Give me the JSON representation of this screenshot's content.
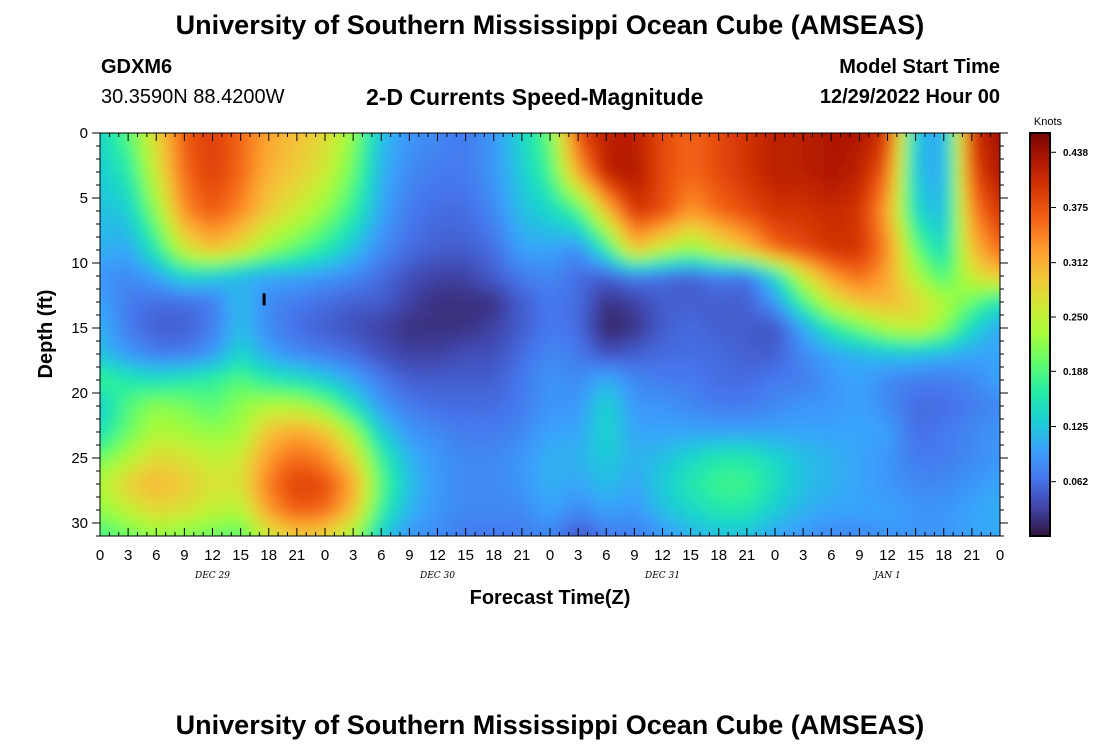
{
  "header": {
    "title": "University of Southern Mississippi Ocean Cube (AMSEAS)",
    "station": "GDXM6",
    "location": "30.3590N  88.4200W",
    "product": "2-D Currents Speed-Magnitude",
    "start_label": "Model Start Time",
    "start_value": "12/29/2022 Hour 00"
  },
  "footer": {
    "title": "University of Southern Mississippi Ocean Cube (AMSEAS)"
  },
  "chart_data": {
    "type": "heatmap",
    "xlabel": "Forecast Time(Z)",
    "ylabel": "Depth (ft)",
    "colorbar_label": "Knots",
    "x_tick_labels": [
      "0",
      "3",
      "6",
      "9",
      "12",
      "15",
      "18",
      "21",
      "0",
      "3",
      "6",
      "9",
      "12",
      "15",
      "18",
      "21",
      "0",
      "3",
      "6",
      "9",
      "12",
      "15",
      "18",
      "21",
      "0",
      "3",
      "6",
      "9",
      "12",
      "15",
      "18",
      "21",
      "0"
    ],
    "date_labels": [
      "DEC 29",
      "DEC 30",
      "DEC 31",
      "JAN 1"
    ],
    "x_range_hours": [
      0,
      96
    ],
    "y_ticks": [
      0,
      5,
      10,
      15,
      20,
      25,
      30
    ],
    "ylim": [
      0,
      31
    ],
    "y_inverted": true,
    "colorbar_ticks": [
      0.438,
      0.375,
      0.312,
      0.25,
      0.188,
      0.125,
      0.062
    ],
    "colorbar_range": [
      0.0,
      0.46
    ],
    "colormap": [
      "#30123b",
      "#4145ab",
      "#4675ed",
      "#39a2fc",
      "#1bcfd4",
      "#24eca6",
      "#61fc6c",
      "#a4fc3b",
      "#d1e834",
      "#f3c63a",
      "#fe9b2d",
      "#f36315",
      "#d93806",
      "#b11901",
      "#7a0403"
    ],
    "depths_ft": [
      0,
      3,
      6,
      9,
      11,
      13,
      15,
      17,
      19,
      21,
      23,
      25,
      27,
      29,
      31
    ],
    "times_h": [
      0,
      3,
      6,
      9,
      12,
      15,
      18,
      21,
      24,
      27,
      30,
      33,
      36,
      39,
      42,
      45,
      48,
      51,
      54,
      57,
      60,
      63,
      66,
      69,
      72,
      75,
      78,
      81,
      84,
      87,
      90,
      93,
      96
    ],
    "speed_knots": [
      [
        0.14,
        0.19,
        0.28,
        0.37,
        0.39,
        0.36,
        0.32,
        0.3,
        0.28,
        0.22,
        0.12,
        0.09,
        0.08,
        0.07,
        0.09,
        0.14,
        0.2,
        0.38,
        0.42,
        0.42,
        0.38,
        0.36,
        0.38,
        0.4,
        0.42,
        0.42,
        0.43,
        0.43,
        0.4,
        0.12,
        0.1,
        0.4,
        0.44
      ],
      [
        0.13,
        0.16,
        0.26,
        0.36,
        0.39,
        0.36,
        0.31,
        0.29,
        0.26,
        0.2,
        0.11,
        0.08,
        0.07,
        0.07,
        0.09,
        0.13,
        0.18,
        0.32,
        0.42,
        0.43,
        0.38,
        0.36,
        0.38,
        0.4,
        0.42,
        0.42,
        0.43,
        0.42,
        0.36,
        0.12,
        0.1,
        0.38,
        0.43
      ],
      [
        0.12,
        0.13,
        0.22,
        0.34,
        0.37,
        0.34,
        0.29,
        0.26,
        0.22,
        0.17,
        0.1,
        0.07,
        0.06,
        0.06,
        0.08,
        0.12,
        0.14,
        0.18,
        0.3,
        0.4,
        0.38,
        0.33,
        0.36,
        0.38,
        0.4,
        0.4,
        0.41,
        0.4,
        0.32,
        0.14,
        0.11,
        0.34,
        0.4
      ],
      [
        0.11,
        0.1,
        0.16,
        0.26,
        0.3,
        0.27,
        0.22,
        0.19,
        0.16,
        0.12,
        0.08,
        0.06,
        0.05,
        0.05,
        0.06,
        0.1,
        0.1,
        0.08,
        0.16,
        0.3,
        0.25,
        0.22,
        0.26,
        0.3,
        0.36,
        0.38,
        0.4,
        0.4,
        0.34,
        0.2,
        0.14,
        0.3,
        0.36
      ],
      [
        0.09,
        0.08,
        0.1,
        0.14,
        0.13,
        0.11,
        0.1,
        0.1,
        0.09,
        0.08,
        0.06,
        0.04,
        0.03,
        0.03,
        0.05,
        0.07,
        0.08,
        0.06,
        0.05,
        0.07,
        0.06,
        0.05,
        0.07,
        0.06,
        0.14,
        0.26,
        0.33,
        0.36,
        0.32,
        0.24,
        0.18,
        0.26,
        0.3
      ],
      [
        0.1,
        0.07,
        0.06,
        0.06,
        0.07,
        0.12,
        0.08,
        0.07,
        0.06,
        0.05,
        0.05,
        0.03,
        0.02,
        0.02,
        0.02,
        0.05,
        0.07,
        0.06,
        0.02,
        0.03,
        0.05,
        0.05,
        0.05,
        0.05,
        0.09,
        0.18,
        0.26,
        0.3,
        0.31,
        0.28,
        0.24,
        0.2,
        0.15
      ],
      [
        0.11,
        0.07,
        0.05,
        0.05,
        0.07,
        0.12,
        0.08,
        0.06,
        0.05,
        0.04,
        0.03,
        0.02,
        0.02,
        0.02,
        0.03,
        0.05,
        0.07,
        0.06,
        0.01,
        0.02,
        0.05,
        0.06,
        0.05,
        0.05,
        0.04,
        0.1,
        0.16,
        0.2,
        0.24,
        0.26,
        0.22,
        0.14,
        0.1
      ],
      [
        0.12,
        0.09,
        0.07,
        0.07,
        0.09,
        0.14,
        0.1,
        0.08,
        0.07,
        0.06,
        0.04,
        0.03,
        0.03,
        0.04,
        0.04,
        0.06,
        0.08,
        0.07,
        0.04,
        0.05,
        0.06,
        0.06,
        0.06,
        0.05,
        0.05,
        0.08,
        0.1,
        0.11,
        0.12,
        0.12,
        0.11,
        0.1,
        0.1
      ],
      [
        0.18,
        0.16,
        0.15,
        0.16,
        0.17,
        0.19,
        0.16,
        0.15,
        0.13,
        0.1,
        0.07,
        0.05,
        0.05,
        0.05,
        0.05,
        0.07,
        0.09,
        0.08,
        0.11,
        0.08,
        0.07,
        0.07,
        0.06,
        0.06,
        0.07,
        0.07,
        0.09,
        0.1,
        0.08,
        0.07,
        0.07,
        0.08,
        0.1
      ],
      [
        0.13,
        0.19,
        0.22,
        0.21,
        0.19,
        0.22,
        0.24,
        0.24,
        0.21,
        0.15,
        0.09,
        0.07,
        0.06,
        0.06,
        0.06,
        0.07,
        0.09,
        0.09,
        0.14,
        0.09,
        0.09,
        0.08,
        0.07,
        0.07,
        0.08,
        0.09,
        0.09,
        0.1,
        0.08,
        0.06,
        0.06,
        0.07,
        0.08
      ],
      [
        0.15,
        0.2,
        0.24,
        0.23,
        0.22,
        0.23,
        0.3,
        0.32,
        0.3,
        0.23,
        0.13,
        0.09,
        0.08,
        0.07,
        0.07,
        0.08,
        0.1,
        0.1,
        0.14,
        0.1,
        0.1,
        0.1,
        0.1,
        0.1,
        0.1,
        0.1,
        0.1,
        0.1,
        0.1,
        0.06,
        0.07,
        0.08,
        0.09
      ],
      [
        0.2,
        0.24,
        0.28,
        0.27,
        0.25,
        0.26,
        0.33,
        0.36,
        0.34,
        0.28,
        0.17,
        0.11,
        0.09,
        0.08,
        0.08,
        0.09,
        0.11,
        0.11,
        0.13,
        0.11,
        0.12,
        0.14,
        0.16,
        0.16,
        0.14,
        0.12,
        0.11,
        0.1,
        0.09,
        0.07,
        0.07,
        0.08,
        0.09
      ],
      [
        0.24,
        0.29,
        0.31,
        0.29,
        0.27,
        0.27,
        0.35,
        0.39,
        0.38,
        0.32,
        0.19,
        0.12,
        0.09,
        0.08,
        0.08,
        0.09,
        0.11,
        0.1,
        0.12,
        0.1,
        0.13,
        0.16,
        0.18,
        0.18,
        0.15,
        0.12,
        0.11,
        0.1,
        0.09,
        0.08,
        0.08,
        0.09,
        0.1
      ],
      [
        0.22,
        0.25,
        0.28,
        0.27,
        0.25,
        0.24,
        0.33,
        0.37,
        0.36,
        0.3,
        0.17,
        0.11,
        0.09,
        0.08,
        0.08,
        0.08,
        0.1,
        0.08,
        0.1,
        0.09,
        0.12,
        0.14,
        0.16,
        0.16,
        0.13,
        0.11,
        0.1,
        0.1,
        0.1,
        0.09,
        0.09,
        0.1,
        0.11
      ],
      [
        0.18,
        0.2,
        0.22,
        0.21,
        0.2,
        0.19,
        0.26,
        0.29,
        0.28,
        0.23,
        0.13,
        0.09,
        0.08,
        0.07,
        0.07,
        0.07,
        0.08,
        0.04,
        0.07,
        0.07,
        0.09,
        0.11,
        0.12,
        0.12,
        0.1,
        0.09,
        0.08,
        0.08,
        0.09,
        0.09,
        0.09,
        0.1,
        0.1
      ]
    ],
    "annotations": [
      {
        "type": "marker",
        "time_h": 17.5,
        "depth_ft": 12.8
      }
    ]
  }
}
